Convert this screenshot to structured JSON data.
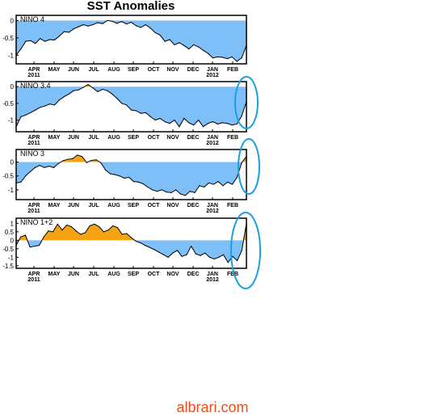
{
  "title": "SST Anomalies",
  "watermark": "albrari.com",
  "colors": {
    "negative_fill": "#7fbff8",
    "positive_fill": "#f5a313",
    "line": "#000000",
    "frame": "#000000",
    "highlight_ellipse": "#1a9fe0",
    "watermark": "#e8501a"
  },
  "chart_data": [
    {
      "type": "area",
      "panel": "NINO 4",
      "x_tick_labels": [
        "APR",
        "MAY",
        "JUN",
        "JUL",
        "AUG",
        "SEP",
        "OCT",
        "NOV",
        "DEC",
        "JAN",
        "FEB"
      ],
      "year_labels": [
        {
          "label": "2011",
          "under": "APR"
        },
        {
          "label": "2012",
          "under": "JAN"
        }
      ],
      "y_ticks": [
        {
          "value": 0,
          "label": "0"
        },
        {
          "value": -0.5,
          "label": "-0.5"
        },
        {
          "value": -1,
          "label": "-1"
        }
      ],
      "ylim": [
        -1.25,
        0.15
      ],
      "xlim": [
        0,
        48
      ],
      "values": [
        -1.0,
        -0.82,
        -0.6,
        -0.58,
        -0.66,
        -0.52,
        -0.6,
        -0.55,
        -0.56,
        -0.45,
        -0.32,
        -0.34,
        -0.24,
        -0.18,
        -0.12,
        -0.16,
        -0.12,
        -0.06,
        -0.09,
        0.0,
        -0.02,
        -0.08,
        -0.03,
        -0.1,
        -0.05,
        -0.15,
        -0.2,
        -0.12,
        -0.22,
        -0.35,
        -0.42,
        -0.6,
        -0.55,
        -0.7,
        -0.64,
        -0.72,
        -0.82,
        -0.7,
        -0.76,
        -0.86,
        -0.95,
        -1.08,
        -1.05,
        -1.06,
        -1.1,
        -1.05,
        -1.18,
        -1.08,
        -0.72
      ]
    },
    {
      "type": "area",
      "panel": "NINO 3.4",
      "x_tick_labels": [
        "APR",
        "MAY",
        "JUN",
        "JUL",
        "AUG",
        "SEP",
        "OCT",
        "NOV",
        "DEC",
        "JAN",
        "FEB"
      ],
      "year_labels": [
        {
          "label": "2011",
          "under": "APR"
        },
        {
          "label": "2012",
          "under": "JAN"
        }
      ],
      "y_ticks": [
        {
          "value": 0,
          "label": "0"
        },
        {
          "value": -0.5,
          "label": "-0.5"
        },
        {
          "value": -1,
          "label": "-1"
        }
      ],
      "ylim": [
        -1.35,
        0.15
      ],
      "xlim": [
        0,
        48
      ],
      "values": [
        -1.2,
        -0.9,
        -0.85,
        -0.78,
        -0.7,
        -0.62,
        -0.58,
        -0.52,
        -0.55,
        -0.4,
        -0.3,
        -0.22,
        -0.12,
        -0.1,
        -0.02,
        0.06,
        -0.04,
        -0.15,
        -0.08,
        -0.12,
        -0.22,
        -0.35,
        -0.5,
        -0.55,
        -0.7,
        -0.72,
        -0.8,
        -0.78,
        -0.9,
        -1.0,
        -0.95,
        -1.05,
        -1.1,
        -1.0,
        -1.2,
        -0.95,
        -1.08,
        -1.15,
        -1.0,
        -1.2,
        -1.1,
        -1.05,
        -1.12,
        -1.08,
        -1.1,
        -1.15,
        -1.12,
        -0.88,
        -0.45
      ]
    },
    {
      "type": "area",
      "panel": "NINO 3",
      "x_tick_labels": [
        "APR",
        "MAY",
        "JUN",
        "JUL",
        "AUG",
        "SEP",
        "OCT",
        "NOV",
        "DEC",
        "JAN",
        "FEB"
      ],
      "year_labels": [
        {
          "label": "2011",
          "under": "APR"
        },
        {
          "label": "2012",
          "under": "JAN"
        }
      ],
      "y_ticks": [
        {
          "value": 0,
          "label": "0"
        },
        {
          "value": -0.5,
          "label": "-0.5"
        },
        {
          "value": -1,
          "label": "-1"
        }
      ],
      "ylim": [
        -1.35,
        0.45
      ],
      "xlim": [
        0,
        48
      ],
      "values": [
        -0.75,
        -0.72,
        -0.5,
        -0.35,
        -0.2,
        -0.12,
        -0.2,
        -0.15,
        -0.2,
        -0.05,
        0.05,
        0.1,
        0.12,
        0.25,
        0.2,
        -0.02,
        0.06,
        0.08,
        -0.02,
        -0.28,
        -0.42,
        -0.45,
        -0.5,
        -0.58,
        -0.55,
        -0.7,
        -0.72,
        -0.78,
        -0.9,
        -1.0,
        -1.05,
        -1.0,
        -1.08,
        -1.1,
        -1.0,
        -1.15,
        -1.2,
        -1.05,
        -1.1,
        -0.85,
        -0.9,
        -0.75,
        -0.8,
        -0.7,
        -0.85,
        -0.72,
        -0.8,
        -0.55,
        -0.02,
        0.2
      ]
    },
    {
      "type": "area",
      "panel": "NINO 1+2",
      "x_tick_labels": [
        "APR",
        "MAY",
        "JUN",
        "JUL",
        "AUG",
        "SEP",
        "OCT",
        "NOV",
        "DEC",
        "JAN",
        "FEB"
      ],
      "year_labels": [
        {
          "label": "2011",
          "under": "APR"
        },
        {
          "label": "2012",
          "under": "JAN"
        }
      ],
      "y_ticks": [
        {
          "value": 1,
          "label": "1"
        },
        {
          "value": 0.5,
          "label": "0.5"
        },
        {
          "value": 0,
          "label": "0"
        },
        {
          "value": -0.5,
          "label": "-0.5"
        },
        {
          "value": -1,
          "label": "-1"
        },
        {
          "value": -1.5,
          "label": "-1.5"
        }
      ],
      "ylim": [
        -1.65,
        1.3
      ],
      "xlim": [
        0,
        48
      ],
      "values": [
        -0.3,
        0.2,
        0.3,
        -0.4,
        -0.35,
        -0.3,
        0.2,
        0.55,
        0.5,
        0.95,
        0.6,
        0.9,
        0.8,
        0.55,
        0.35,
        0.45,
        0.85,
        0.95,
        0.8,
        0.5,
        0.6,
        0.85,
        0.75,
        0.35,
        0.4,
        0.15,
        -0.05,
        -0.15,
        -0.3,
        -0.42,
        -0.55,
        -0.7,
        -0.85,
        -1.0,
        -0.75,
        -0.6,
        -0.95,
        -0.85,
        -0.35,
        -0.8,
        -0.9,
        -0.75,
        -1.0,
        -1.1,
        -1.0,
        -0.85,
        -1.3,
        -0.95,
        -1.2,
        -0.6,
        1.0
      ]
    }
  ]
}
